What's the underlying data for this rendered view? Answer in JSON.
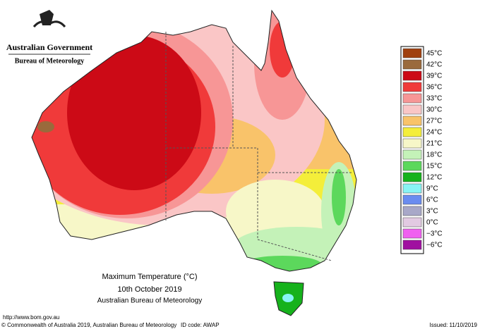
{
  "header": {
    "title": "Australian Government",
    "subtitle": "Bureau of Meteorology"
  },
  "map": {
    "title": "Maximum Temperature (°C)",
    "date": "10th October 2019",
    "source": "Australian Bureau of Meteorology"
  },
  "legend": [
    {
      "label": "45°C",
      "color": "#a0400f"
    },
    {
      "label": "42°C",
      "color": "#9a6a3c"
    },
    {
      "label": "39°C",
      "color": "#cc0a16"
    },
    {
      "label": "36°C",
      "color": "#f03a3a"
    },
    {
      "label": "33°C",
      "color": "#f79696"
    },
    {
      "label": "30°C",
      "color": "#fac6c6"
    },
    {
      "label": "27°C",
      "color": "#f9c36a"
    },
    {
      "label": "24°C",
      "color": "#f4ee3a"
    },
    {
      "label": "21°C",
      "color": "#f7f7c8"
    },
    {
      "label": "18°C",
      "color": "#c4f2b8"
    },
    {
      "label": "15°C",
      "color": "#5cd85c"
    },
    {
      "label": "12°C",
      "color": "#16b21c"
    },
    {
      "label": "9°C",
      "color": "#88f4f4"
    },
    {
      "label": "6°C",
      "color": "#6a8cf0"
    },
    {
      "label": "3°C",
      "color": "#a8a8c8"
    },
    {
      "label": "0°C",
      "color": "#e2cae2"
    },
    {
      "label": "−3°C",
      "color": "#f060f0"
    },
    {
      "label": "−6°C",
      "color": "#a010a0"
    }
  ],
  "footer": {
    "url": "http://www.bom.gov.au",
    "copyright": "© Commonwealth of Australia 2019, Australian Bureau of Meteorology",
    "id_code": "ID code: AWAP",
    "issued": "Issued: 11/10/2019"
  }
}
